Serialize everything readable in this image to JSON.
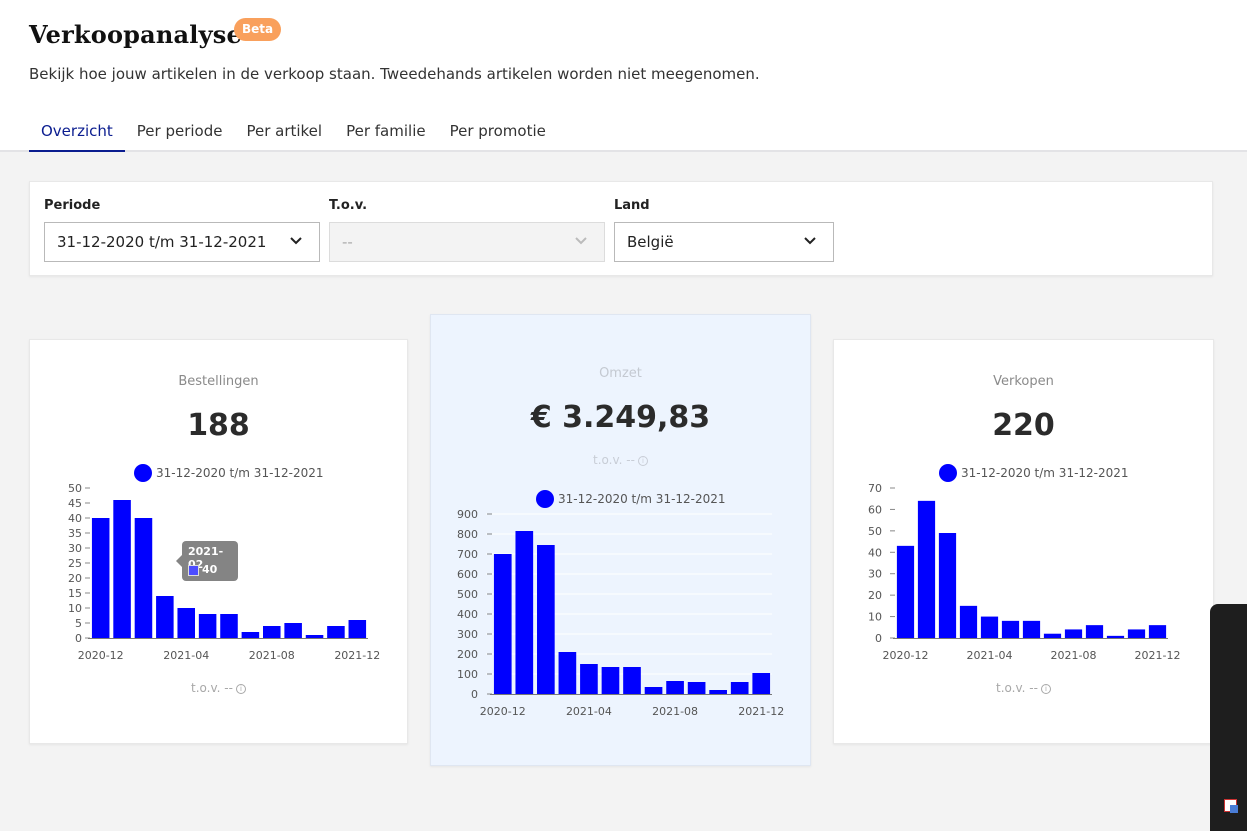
{
  "header": {
    "title": "Verkoopanalyse",
    "badge": "Beta",
    "subtitle": "Bekijk hoe jouw artikelen in de verkoop staan. Tweedehands artikelen worden niet meegenomen."
  },
  "tabs": [
    {
      "label": "Overzicht",
      "active": true
    },
    {
      "label": "Per periode",
      "active": false
    },
    {
      "label": "Per artikel",
      "active": false
    },
    {
      "label": "Per familie",
      "active": false
    },
    {
      "label": "Per promotie",
      "active": false
    }
  ],
  "filters": {
    "periode": {
      "label": "Periode",
      "value": "31-12-2020 t/m 31-12-2021"
    },
    "tov": {
      "label": "T.o.v.",
      "value": "--",
      "disabled": true
    },
    "land": {
      "label": "Land",
      "value": "België"
    }
  },
  "cards": {
    "bestellingen": {
      "label": "Bestellingen",
      "value": "188",
      "comparison": "t.o.v. --",
      "legend": "31-12-2020 t/m 31-12-2021"
    },
    "omzet": {
      "label": "Omzet",
      "value": "€ 3.249,83",
      "comparison": "t.o.v. --",
      "legend": "31-12-2020 t/m 31-12-2021"
    },
    "verkopen": {
      "label": "Verkopen",
      "value": "220",
      "comparison": "t.o.v. --",
      "legend": "31-12-2020 t/m 31-12-2021"
    }
  },
  "tooltip": {
    "title": "2021-02",
    "value": "40"
  },
  "colors": {
    "accent": "#0a1c8f",
    "bar": "#0000ff",
    "badge": "#f9a05c",
    "highlight_card": "#edf4fe"
  },
  "chart_data": [
    {
      "type": "bar",
      "title": "Bestellingen",
      "categories": [
        "2020-12",
        "2021-01",
        "2021-02",
        "2021-03",
        "2021-04",
        "2021-05",
        "2021-06",
        "2021-07",
        "2021-08",
        "2021-09",
        "2021-10",
        "2021-11",
        "2021-12"
      ],
      "x_tick_labels": [
        "2020-12",
        "2021-04",
        "2021-08",
        "2021-12"
      ],
      "series": [
        {
          "name": "31-12-2020 t/m 31-12-2021",
          "values": [
            40,
            46,
            40,
            14,
            10,
            8,
            8,
            2,
            4,
            5,
            1,
            4,
            6
          ]
        }
      ],
      "ylim": [
        0,
        50
      ],
      "y_ticks": [
        0,
        5,
        10,
        15,
        20,
        25,
        30,
        35,
        40,
        45,
        50
      ],
      "grid": false,
      "legend": "top"
    },
    {
      "type": "bar",
      "title": "Omzet",
      "categories": [
        "2020-12",
        "2021-01",
        "2021-02",
        "2021-03",
        "2021-04",
        "2021-05",
        "2021-06",
        "2021-07",
        "2021-08",
        "2021-09",
        "2021-10",
        "2021-11",
        "2021-12"
      ],
      "x_tick_labels": [
        "2020-12",
        "2021-04",
        "2021-08",
        "2021-12"
      ],
      "series": [
        {
          "name": "31-12-2020 t/m 31-12-2021",
          "values": [
            700,
            815,
            745,
            210,
            150,
            135,
            135,
            35,
            65,
            60,
            20,
            60,
            105
          ]
        }
      ],
      "ylim": [
        0,
        900
      ],
      "y_ticks": [
        0,
        100,
        200,
        300,
        400,
        500,
        600,
        700,
        800,
        900
      ],
      "grid": true,
      "legend": "top"
    },
    {
      "type": "bar",
      "title": "Verkopen",
      "categories": [
        "2020-12",
        "2021-01",
        "2021-02",
        "2021-03",
        "2021-04",
        "2021-05",
        "2021-06",
        "2021-07",
        "2021-08",
        "2021-09",
        "2021-10",
        "2021-11",
        "2021-12"
      ],
      "x_tick_labels": [
        "2020-12",
        "2021-04",
        "2021-08",
        "2021-12"
      ],
      "series": [
        {
          "name": "31-12-2020 t/m 31-12-2021",
          "values": [
            43,
            64,
            49,
            15,
            10,
            8,
            8,
            2,
            4,
            6,
            1,
            4,
            6
          ]
        }
      ],
      "ylim": [
        0,
        70
      ],
      "y_ticks": [
        0,
        10,
        20,
        30,
        40,
        50,
        60,
        70
      ],
      "grid": false,
      "legend": "top"
    }
  ]
}
